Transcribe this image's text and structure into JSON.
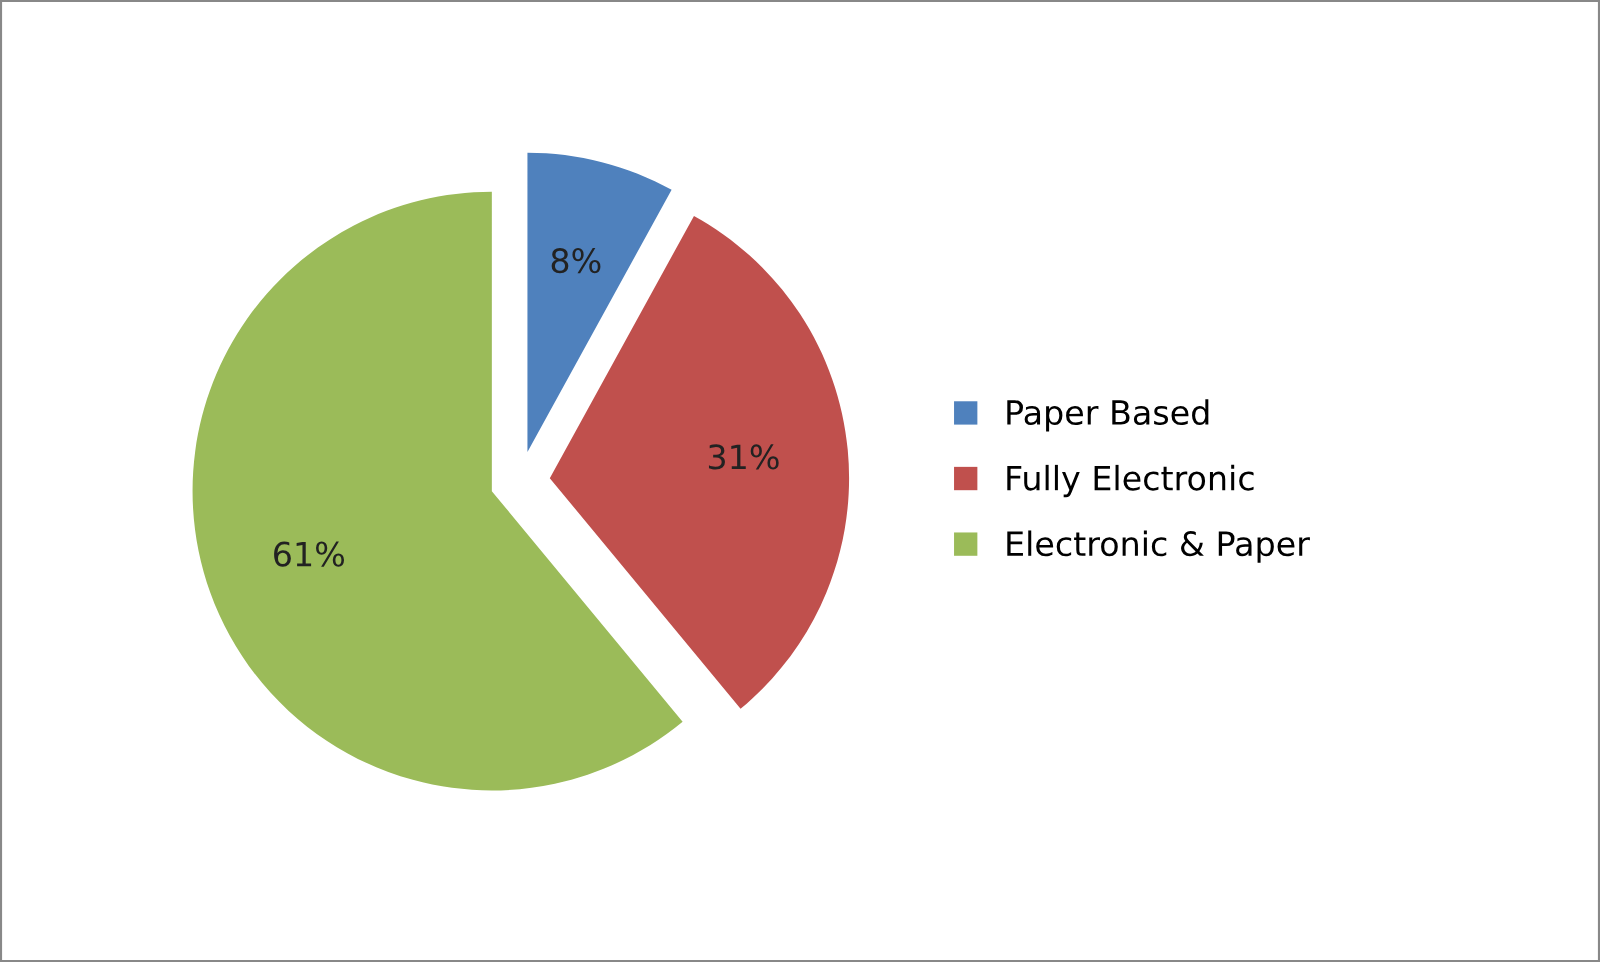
{
  "chart_data": {
    "type": "pie",
    "categories": [
      "Paper Based",
      "Fully Electronic",
      "Electronic & Paper"
    ],
    "values": [
      8,
      31,
      61
    ],
    "colors": [
      "#4f81bd",
      "#c0504d",
      "#9bbb59"
    ],
    "value_labels": [
      "8%",
      "31%",
      "61%"
    ],
    "legend": "right"
  }
}
